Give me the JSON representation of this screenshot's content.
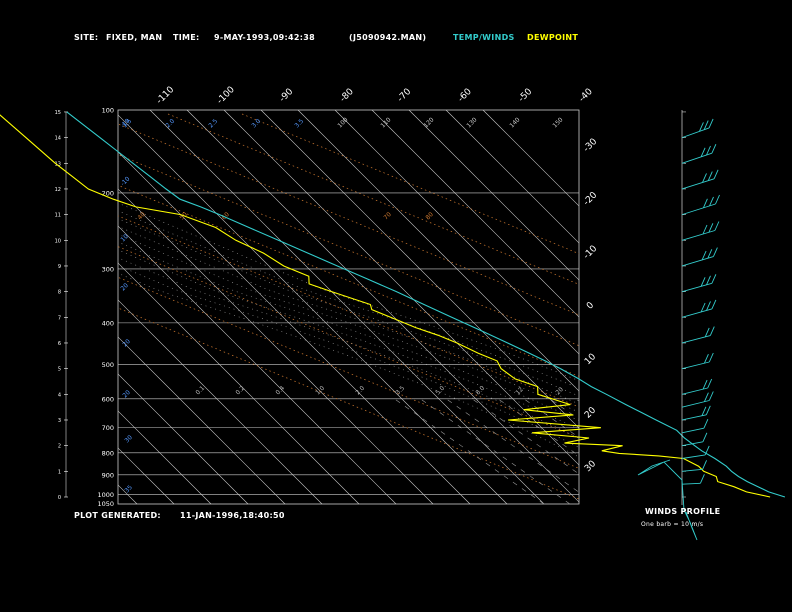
{
  "header": {
    "site_label": "SITE:",
    "site_value": "FIXED, MAN",
    "time_label": "TIME:",
    "time_value": "9-MAY-1993,09:42:38",
    "file_value": "(J5090942.MAN)",
    "temp_legend": "TEMP/WINDS",
    "dew_legend": "DEWPOINT"
  },
  "footer": {
    "generated_label": "PLOT GENERATED:",
    "generated_value": "11-JAN-1996,18:40:50"
  },
  "winds_panel": {
    "title": "WINDS PROFILE",
    "note": "One barb = 10 m/s"
  },
  "colors": {
    "background": "#000000",
    "grid": "#cccccc",
    "temperature": "#33cccc",
    "dewpoint": "#ffff00",
    "dry_adiabat": "#d07a30",
    "mixing_ratio": "#9a9a9a",
    "moist_adiabat": "#a0a0a0",
    "isotherm_label": "#5599ff"
  },
  "chart_data": {
    "type": "line",
    "title": "",
    "pressure_levels": [
      1050,
      1000,
      900,
      800,
      700,
      600,
      500,
      400,
      300,
      200,
      100
    ],
    "pressure_tick_labels": [
      "1050",
      "1000",
      "900",
      "800",
      "700",
      "600",
      "500",
      "400",
      "300",
      "200",
      "100"
    ],
    "height_km_ticks": [
      "0",
      "1",
      "2",
      "3",
      "4",
      "5",
      "6",
      "7",
      "8",
      "9",
      "10",
      "11",
      "12",
      "13",
      "14",
      "15"
    ],
    "isotherm_top_labels": [
      "-110",
      "-100",
      "-90",
      "-80",
      "-70",
      "-60",
      "-50",
      "-40"
    ],
    "isotherm_right_labels": [
      "-30",
      "-20",
      "-10",
      "0",
      "10",
      "20",
      "30"
    ],
    "inside_labels_top_row": [
      "1.5",
      "2.0",
      "2.5",
      "3.0",
      "3.5",
      "100",
      "110",
      "120",
      "130",
      "140",
      "150"
    ],
    "inside_labels_theta_row": [
      "40",
      "50",
      "60",
      "70",
      "80"
    ],
    "inside_labels_mixing_row": [
      "0.1",
      "0.2",
      "0.4",
      "1.0",
      "2.0",
      "3.5",
      "5.0",
      "8.0",
      "12",
      "20"
    ],
    "series": [
      {
        "name": "TEMP/WINDS",
        "z_km": [
          0,
          0.2,
          0.4,
          0.6,
          0.8,
          1.0,
          1.2,
          1.5,
          1.8,
          2.0,
          2.3,
          2.6,
          3.0,
          3.3,
          3.6,
          4.0,
          4.3,
          4.6,
          5.0,
          5.3,
          5.6,
          6.0,
          6.5,
          7.0,
          7.5,
          8.0,
          8.5,
          9.0,
          9.5,
          10.0,
          10.5,
          11.0,
          11.3,
          11.6,
          12.0,
          12.5,
          13.0,
          13.5,
          14.0,
          14.5,
          15.0
        ],
        "temp_c": [
          27,
          24,
          22.5,
          21,
          20,
          19.5,
          19.5,
          18.5,
          17,
          16.5,
          15.8,
          15.8,
          13,
          11,
          9,
          6.5,
          4.5,
          3.2,
          1,
          -1,
          -3.2,
          -6.3,
          -10.3,
          -14.5,
          -18.5,
          -22.5,
          -27,
          -31.5,
          -36,
          -40.5,
          -45,
          -49.5,
          -52.5,
          -56,
          -57,
          -58,
          -59,
          -60,
          -61,
          -62,
          -63
        ]
      },
      {
        "name": "DEWPOINT",
        "z_km": [
          0,
          0.2,
          0.4,
          0.6,
          0.8,
          1.0,
          1.2,
          1.5,
          1.6,
          1.7,
          1.8,
          2.0,
          2.1,
          2.3,
          2.5,
          2.7,
          3.0,
          3.2,
          3.4,
          3.6,
          4.0,
          4.3,
          4.6,
          5.0,
          5.3,
          5.6,
          6.0,
          6.3,
          6.6,
          7.0,
          7.3,
          7.5,
          8.0,
          8.3,
          8.6,
          9.0,
          9.5,
          10.0,
          10.5,
          11.0,
          11.3,
          11.6,
          12.0,
          12.5,
          13.0,
          14.0,
          15.0
        ],
        "dew_c": [
          23,
          18,
          16,
          13,
          14,
          12,
          12,
          10,
          4,
          -6,
          -10,
          -3,
          -18,
          -10,
          -24,
          -4,
          -27,
          -8,
          -20,
          -6,
          -12,
          -10,
          -14,
          -15,
          -14,
          -17,
          -20,
          -23,
          -27,
          -31,
          -34,
          -33,
          -40,
          -44,
          -42,
          -46,
          -48,
          -52,
          -54,
          -60,
          -70,
          -74,
          -78,
          -79,
          -80,
          -81,
          -82
        ]
      }
    ],
    "winds_profile": {
      "z_km": [
        0.5,
        1,
        1.5,
        2,
        2.5,
        3,
        3.5,
        4,
        5,
        6,
        7,
        8,
        9,
        10,
        11,
        12,
        13,
        14
      ],
      "speed_ms": [
        5,
        8,
        12,
        10,
        12,
        15,
        20,
        18,
        20,
        22,
        25,
        25,
        28,
        30,
        32,
        30,
        28,
        25
      ],
      "dir_deg": [
        200,
        220,
        240,
        250,
        260,
        260,
        270,
        270,
        270,
        275,
        280,
        280,
        285,
        285,
        290,
        290,
        295,
        300
      ]
    }
  }
}
